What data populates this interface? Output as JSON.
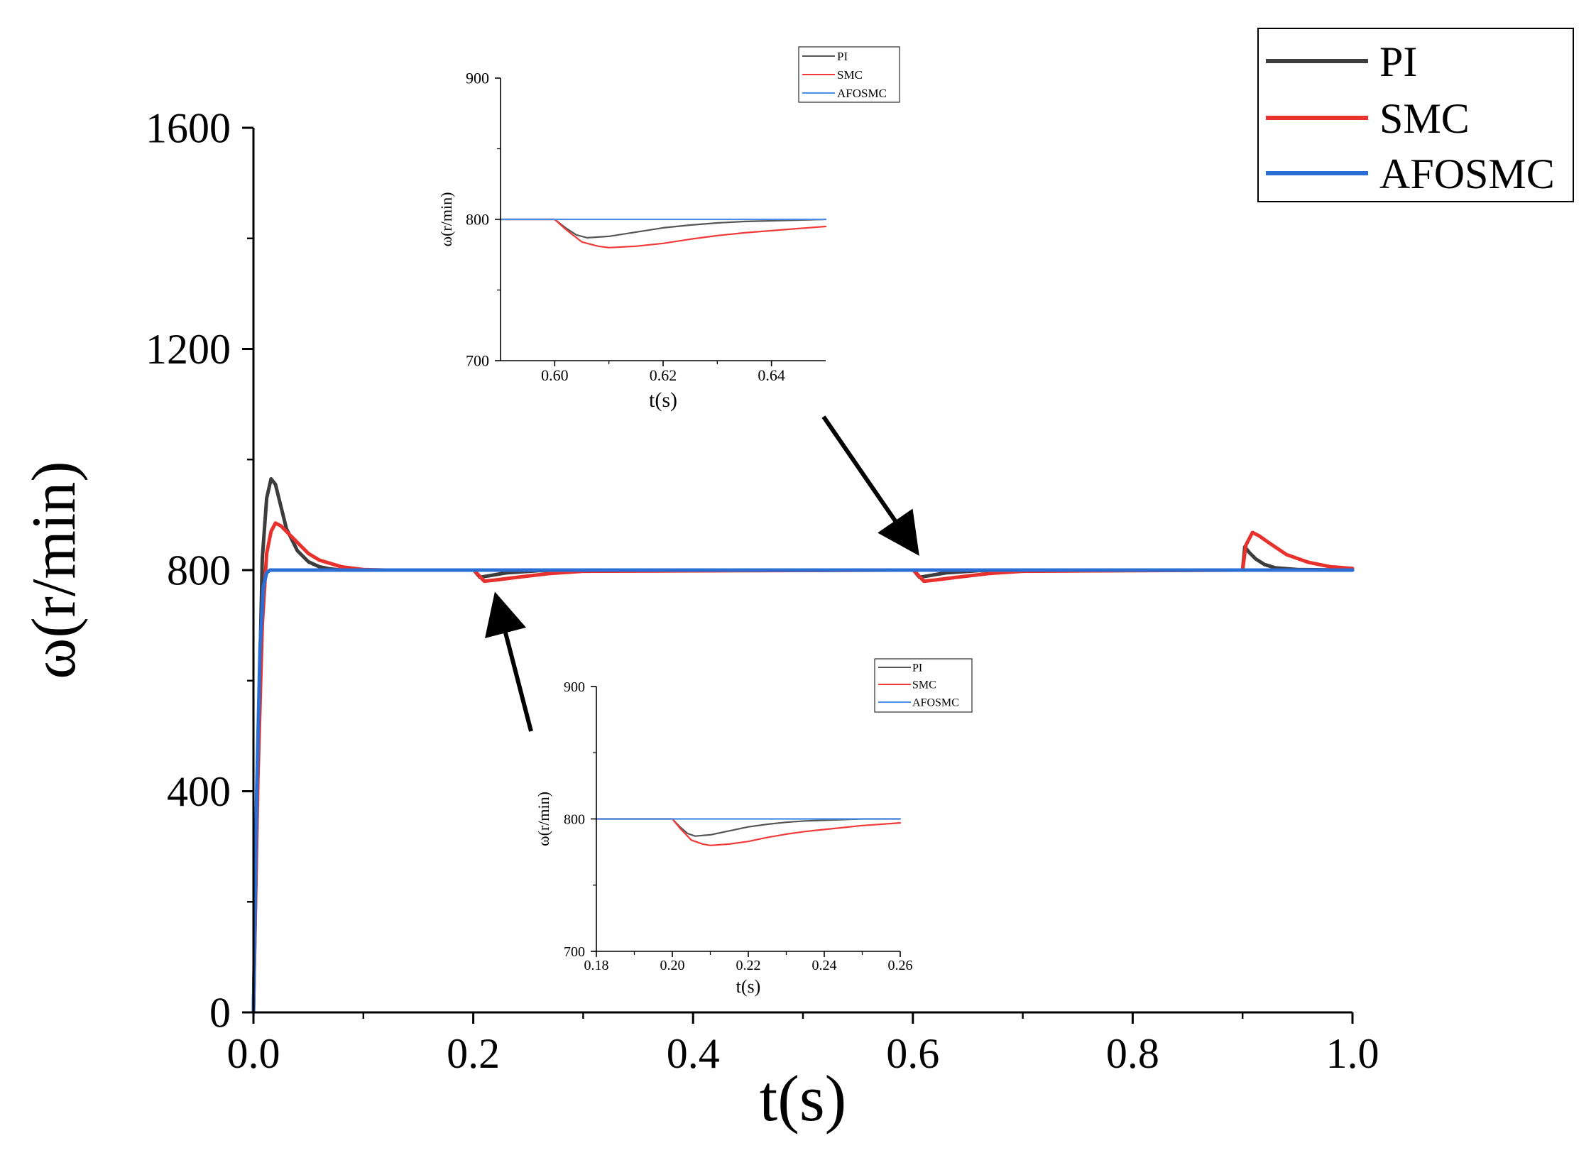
{
  "chart_data": [
    {
      "id": "main",
      "type": "line",
      "title": "",
      "xlabel": "t(s)",
      "ylabel": "ω(r/min)",
      "xlim": [
        0.0,
        1.0
      ],
      "ylim": [
        0,
        1600
      ],
      "xticks": [
        "0.0",
        "0.2",
        "0.4",
        "0.6",
        "0.8",
        "1.0"
      ],
      "yticks": [
        "0",
        "400",
        "800",
        "1200",
        "1600"
      ],
      "legend": [
        "PI",
        "SMC",
        "AFOSMC"
      ],
      "legend_position": "top-right",
      "series": [
        {
          "name": "PI",
          "color": "#3d3d3d",
          "x": [
            0,
            0.004,
            0.008,
            0.012,
            0.016,
            0.02,
            0.025,
            0.03,
            0.04,
            0.05,
            0.06,
            0.07,
            0.08,
            0.1,
            0.2,
            0.2005,
            0.206,
            0.215,
            0.23,
            0.26,
            0.3,
            0.6,
            0.6005,
            0.606,
            0.615,
            0.63,
            0.66,
            0.7,
            0.9,
            0.902,
            0.906,
            0.912,
            0.92,
            0.93,
            0.95,
            1.0
          ],
          "y": [
            0,
            450,
            820,
            930,
            965,
            955,
            915,
            875,
            835,
            815,
            806,
            802,
            800,
            800,
            800,
            800,
            787,
            790,
            795,
            799,
            800,
            800,
            800,
            787,
            790,
            795,
            799,
            800,
            800,
            842,
            832,
            820,
            810,
            804,
            801,
            800
          ]
        },
        {
          "name": "SMC",
          "color": "#e8302d",
          "x": [
            0,
            0.004,
            0.008,
            0.012,
            0.016,
            0.02,
            0.025,
            0.03,
            0.04,
            0.05,
            0.06,
            0.08,
            0.1,
            0.12,
            0.2,
            0.2005,
            0.21,
            0.22,
            0.24,
            0.27,
            0.3,
            0.6,
            0.6005,
            0.61,
            0.62,
            0.64,
            0.67,
            0.7,
            0.9,
            0.903,
            0.909,
            0.915,
            0.925,
            0.94,
            0.96,
            0.98,
            1.0
          ],
          "y": [
            0,
            420,
            700,
            830,
            870,
            885,
            880,
            870,
            850,
            830,
            818,
            806,
            801,
            800,
            800,
            800,
            780,
            782,
            787,
            794,
            798,
            800,
            800,
            780,
            782,
            787,
            794,
            798,
            800,
            845,
            868,
            862,
            848,
            828,
            814,
            806,
            803
          ]
        },
        {
          "name": "AFOSMC",
          "color": "#2a6fd6",
          "x": [
            0,
            0.003,
            0.006,
            0.009,
            0.012,
            0.015,
            0.02,
            1.0
          ],
          "y": [
            0,
            400,
            660,
            770,
            795,
            800,
            800,
            800
          ]
        }
      ]
    },
    {
      "id": "inset_top",
      "type": "line",
      "title": "",
      "xlabel": "t(s)",
      "ylabel": "ω(r/min)",
      "xlim": [
        0.59,
        0.65
      ],
      "ylim": [
        700,
        900
      ],
      "xticks": [
        "0.60",
        "0.62",
        "0.64"
      ],
      "xtick_values": [
        0.6,
        0.62,
        0.64
      ],
      "yticks": [
        "700",
        "800",
        "900"
      ],
      "legend": [
        "PI",
        "SMC",
        "AFOSMC"
      ],
      "legend_position": "top-right",
      "series": [
        {
          "name": "PI",
          "color": "#555555",
          "x": [
            0.59,
            0.6,
            0.602,
            0.604,
            0.606,
            0.61,
            0.615,
            0.62,
            0.625,
            0.63,
            0.635,
            0.64,
            0.65
          ],
          "y": [
            800,
            800,
            794,
            789,
            787,
            788,
            791,
            794,
            796,
            797.5,
            798.5,
            799,
            800
          ]
        },
        {
          "name": "SMC",
          "color": "#f03a3a",
          "x": [
            0.59,
            0.6,
            0.602,
            0.605,
            0.608,
            0.61,
            0.615,
            0.62,
            0.625,
            0.63,
            0.635,
            0.64,
            0.645,
            0.65
          ],
          "y": [
            800,
            800,
            793,
            784,
            781,
            780,
            781,
            783,
            786,
            788.5,
            790.5,
            792,
            793.5,
            795
          ]
        },
        {
          "name": "AFOSMC",
          "color": "#4a8ee8",
          "x": [
            0.59,
            0.65
          ],
          "y": [
            800,
            800
          ]
        }
      ]
    },
    {
      "id": "inset_bottom",
      "type": "line",
      "title": "",
      "xlabel": "t(s)",
      "ylabel": "ω(r/min)",
      "xlim": [
        0.18,
        0.26
      ],
      "ylim": [
        700,
        900
      ],
      "xticks": [
        "0.18",
        "0.20",
        "0.22",
        "0.24",
        "0.26"
      ],
      "xtick_values": [
        0.18,
        0.2,
        0.22,
        0.24,
        0.26
      ],
      "yticks": [
        "700",
        "800",
        "900"
      ],
      "legend": [
        "PI",
        "SMC",
        "AFOSMC"
      ],
      "legend_position": "top-right",
      "series": [
        {
          "name": "PI",
          "color": "#555555",
          "x": [
            0.18,
            0.2,
            0.202,
            0.204,
            0.206,
            0.21,
            0.215,
            0.22,
            0.225,
            0.23,
            0.235,
            0.24,
            0.25,
            0.26
          ],
          "y": [
            800,
            800,
            794,
            789,
            787,
            788,
            791,
            794,
            796,
            797.5,
            798.5,
            799,
            800,
            800
          ]
        },
        {
          "name": "SMC",
          "color": "#f03a3a",
          "x": [
            0.18,
            0.2,
            0.202,
            0.205,
            0.208,
            0.21,
            0.215,
            0.22,
            0.225,
            0.23,
            0.235,
            0.24,
            0.245,
            0.25,
            0.26
          ],
          "y": [
            800,
            800,
            793,
            784,
            781,
            780,
            781,
            783,
            786,
            788.5,
            790.5,
            792,
            793.5,
            795,
            797
          ]
        },
        {
          "name": "AFOSMC",
          "color": "#4a8ee8",
          "x": [
            0.18,
            0.26
          ],
          "y": [
            800,
            800
          ]
        }
      ]
    }
  ]
}
